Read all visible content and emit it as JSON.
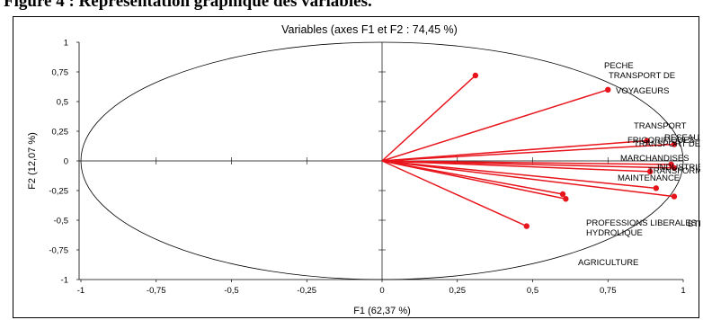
{
  "caption": "Figure 4 : Représentation graphique des variables.",
  "chart_data": {
    "type": "scatter",
    "title": "Variables (axes F1 et F2 : 74,45 %)",
    "xlabel": "F1 (62,37 %)",
    "ylabel": "F2 (12,07 %)",
    "xlim": [
      -1,
      1
    ],
    "ylim": [
      -1,
      1
    ],
    "x_ticks": [
      "-1",
      "-0,75",
      "-0,5",
      "-0,25",
      "0",
      "0,25",
      "0,5",
      "0,75",
      "1"
    ],
    "y_ticks": [
      "1",
      "0,75",
      "0,5",
      "0,25",
      "0",
      "-0,25",
      "-0,5",
      "-0,75",
      "-1"
    ],
    "correlation_circle": true,
    "grid": false,
    "colors": {
      "vectors": "#e8141b",
      "axes": "#000000",
      "circle": "#000000"
    },
    "points": [
      {
        "label": "PECHE",
        "x": 0.31,
        "y": 0.72
      },
      {
        "label": "TRANSPORT DE VOYAGEURS",
        "x": 0.75,
        "y": 0.6
      },
      {
        "label": "TRANSPORT FRIGORIFIQUES",
        "x": 0.88,
        "y": 0.17
      },
      {
        "label": "RESEAUX",
        "x": 0.97,
        "y": 0.14
      },
      {
        "label": "TRANSPORT DE MARCHANDISES",
        "x": 0.96,
        "y": -0.03
      },
      {
        "label": "INDUSTRIE",
        "x": 0.97,
        "y": -0.06
      },
      {
        "label": "TRANSFORMATION",
        "x": 0.89,
        "y": -0.09
      },
      {
        "label": "MAINTENANCE",
        "x": 0.91,
        "y": -0.23
      },
      {
        "label": "PROFESSIONS LIBERALES",
        "x": 0.6,
        "y": -0.28
      },
      {
        "label": "BTP",
        "x": 0.97,
        "y": -0.3
      },
      {
        "label": "HYDROLIQUE",
        "x": 0.61,
        "y": -0.32
      },
      {
        "label": "AGRICULTURE",
        "x": 0.48,
        "y": -0.55
      }
    ],
    "label_texts": {
      "peche": "PECHE",
      "transport_voyageurs_1": "TRANSPORT DE",
      "transport_voyageurs_2": "VOYAGEURS",
      "transport_1": "TRANSPORT",
      "frigorifiques": "FRIGORIFIQUES",
      "reseaux": "RESEAUX",
      "transport_de_2": "TRANSPORT DE",
      "marchandises": "MARCHANDISES",
      "industrie": "INDUSTRIE",
      "transformation": "TRANSFORMATION",
      "maintenance": "MAINTENANCE",
      "professions_liberales": "PROFESSIONS LIBERALES",
      "btp": "BTP",
      "hydrolique": "HYDROLIQUE",
      "agriculture": "AGRICULTURE"
    }
  }
}
